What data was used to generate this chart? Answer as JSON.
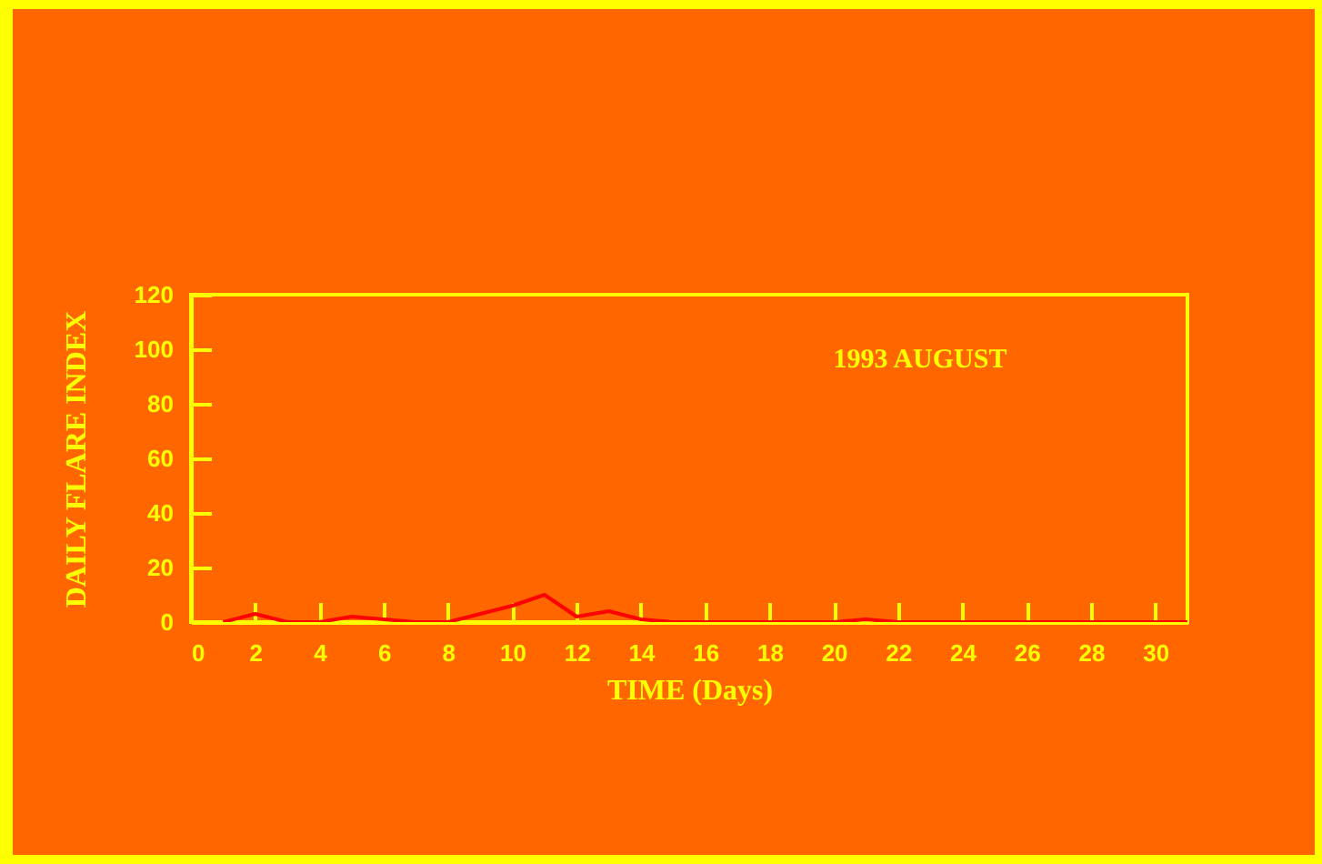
{
  "chart_data": {
    "type": "line",
    "xlabel": "TIME (Days)",
    "ylabel": "DAILY FLARE INDEX",
    "annotations": [
      "1993 AUGUST"
    ],
    "x": [
      1,
      2,
      3,
      4,
      5,
      6,
      7,
      8,
      9,
      10,
      11,
      12,
      13,
      14,
      15,
      16,
      17,
      18,
      19,
      20,
      21,
      22,
      23,
      24,
      25,
      26,
      27,
      28,
      29,
      30,
      31
    ],
    "series": [
      {
        "color": "#ff0000",
        "values": [
          0,
          3,
          0,
          0,
          2,
          1,
          0,
          0,
          3,
          6,
          10,
          2,
          4,
          1,
          0,
          0,
          0,
          0,
          0,
          0,
          1,
          0,
          0,
          0,
          0,
          0,
          0,
          0,
          0,
          0,
          0
        ]
      }
    ],
    "xlim": [
      0,
      31
    ],
    "ylim": [
      0,
      120
    ],
    "xticks": [
      0,
      2,
      4,
      6,
      8,
      10,
      12,
      14,
      16,
      18,
      20,
      22,
      24,
      26,
      28,
      30
    ],
    "yticks": [
      0,
      20,
      40,
      60,
      80,
      100,
      120
    ],
    "line_style": "solid"
  }
}
